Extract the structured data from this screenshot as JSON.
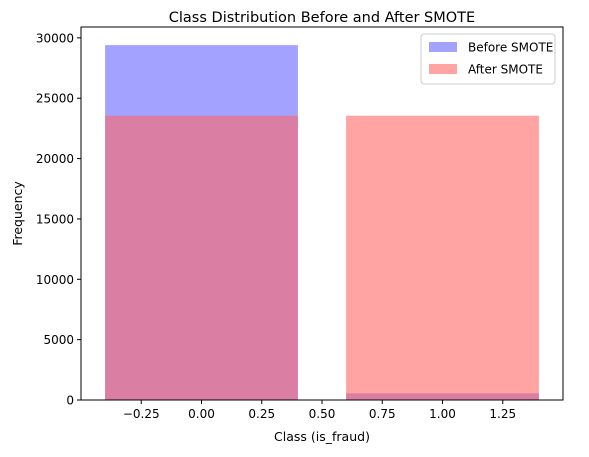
{
  "chart_data": {
    "type": "bar",
    "title": "Class Distribution Before and After SMOTE",
    "xlabel": "Class (is_fraud)",
    "ylabel": "Frequency",
    "categories": [
      0,
      1
    ],
    "bar_width": 0.8,
    "series": [
      {
        "name": "Before SMOTE",
        "color": "#6666ff",
        "opacity": 0.6,
        "values": [
          29400,
          550
        ]
      },
      {
        "name": "After SMOTE",
        "color": "#ff6666",
        "opacity": 0.6,
        "values": [
          23550,
          23550
        ]
      }
    ],
    "overlap_color": "#c02a65",
    "xlim": [
      -0.5,
      1.5
    ],
    "ylim": [
      0,
      30900
    ],
    "xticks": [
      -0.25,
      0.0,
      0.25,
      0.5,
      0.75,
      1.0,
      1.25
    ],
    "xtick_labels": [
      "−0.25",
      "0.00",
      "0.25",
      "0.50",
      "0.75",
      "1.00",
      "1.25"
    ],
    "yticks": [
      0,
      5000,
      10000,
      15000,
      20000,
      25000,
      30000
    ],
    "ytick_labels": [
      "0",
      "5000",
      "10000",
      "15000",
      "20000",
      "25000",
      "30000"
    ],
    "grid": false,
    "legend": {
      "position": "top-right",
      "entries": [
        "Before SMOTE",
        "After SMOTE"
      ]
    }
  }
}
